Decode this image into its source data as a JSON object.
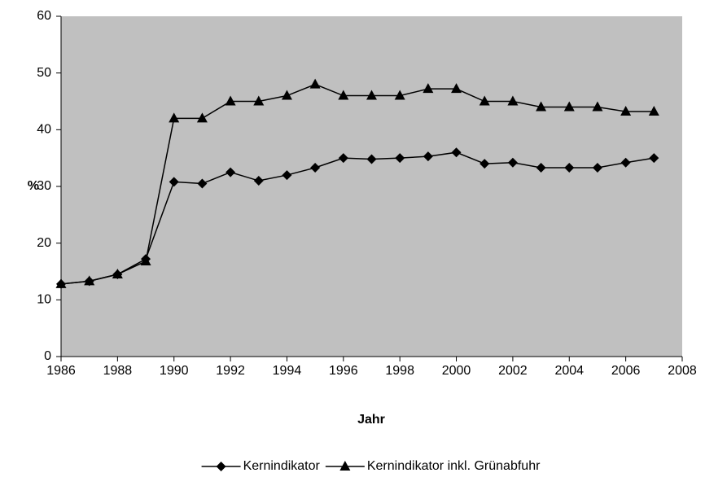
{
  "chart_data": {
    "type": "line",
    "x_label": "Jahr",
    "y_label": "%",
    "x": [
      1986,
      1987,
      1988,
      1989,
      1990,
      1991,
      1992,
      1993,
      1994,
      1995,
      1996,
      1997,
      1998,
      1999,
      2000,
      2001,
      2002,
      2003,
      2004,
      2005,
      2006,
      2007
    ],
    "series": [
      {
        "name": "Kernindikator",
        "color": "#000000",
        "marker": "diamond",
        "values": [
          12.8,
          13.3,
          14.5,
          17.2,
          30.8,
          30.5,
          32.5,
          31,
          32,
          33.3,
          35,
          34.8,
          35,
          35.3,
          36,
          34,
          34.2,
          33.3,
          33.3,
          33.3,
          34.2,
          35
        ]
      },
      {
        "name": "Kernindikator inkl. Grünabfuhr",
        "color": "#000000",
        "marker": "triangle",
        "values": [
          12.8,
          13.3,
          14.5,
          16.8,
          42,
          42,
          45,
          45,
          46,
          48,
          46,
          46,
          46,
          47.2,
          47.2,
          45,
          45,
          44,
          44,
          44,
          43.2,
          43.2
        ]
      }
    ],
    "xlim": [
      1986,
      2008
    ],
    "xticks": [
      1986,
      1988,
      1990,
      1992,
      1994,
      1996,
      1998,
      2000,
      2002,
      2004,
      2006,
      2008
    ],
    "ylim": [
      0,
      60
    ],
    "yticks": [
      0,
      10,
      20,
      30,
      40,
      50,
      60
    ],
    "grid": false,
    "plot_background": "#c0c0c0",
    "legend": "bottom"
  }
}
